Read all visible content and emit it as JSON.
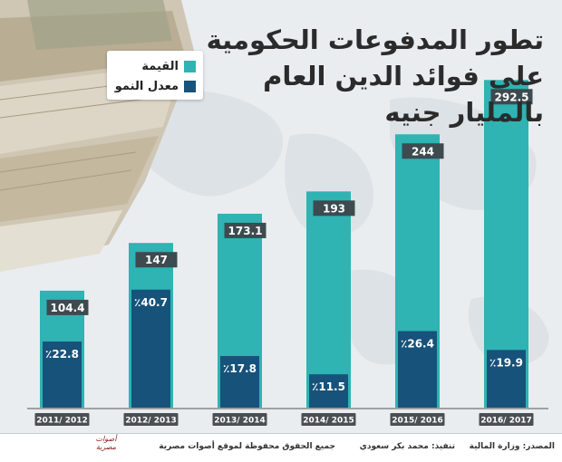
{
  "title_lines": [
    "تطور المدفوعات الحكومية",
    "على فوائد الدين العام",
    "بالمليار جنيه"
  ],
  "legend": {
    "value_label": "القيمة",
    "growth_label": "معدل النمو"
  },
  "colors": {
    "value_bar": "#2fb3b3",
    "growth_bar": "#17527a",
    "label_box": "#3d4a4f",
    "background": "#e9edf0"
  },
  "chart_data": {
    "type": "bar",
    "categories": [
      "2011/ 2012",
      "2012/ 2013",
      "2013/ 2014",
      "2014/ 2015",
      "2015/ 2016",
      "2016/ 2017"
    ],
    "series": [
      {
        "name": "القيمة",
        "values": [
          104.4,
          147,
          173.1,
          193,
          244,
          292.5
        ]
      },
      {
        "name": "معدل النمو",
        "values": [
          22.8,
          40.7,
          17.8,
          11.5,
          26.4,
          19.9
        ],
        "unit": "٪"
      }
    ],
    "title": "تطور المدفوعات الحكومية على فوائد الدين العام بالمليار جنيه",
    "ylim": [
      0,
      300
    ],
    "grid": false,
    "legend_position": "top-left"
  },
  "footer": {
    "source": "المصدر: وزارة المالية",
    "design": "تنفيذ: محمد بكر سعودي",
    "rights": "جميع الحقوق محفوظة لموقع أصوات مصرية"
  },
  "logo_text": "أصوات مصرية"
}
